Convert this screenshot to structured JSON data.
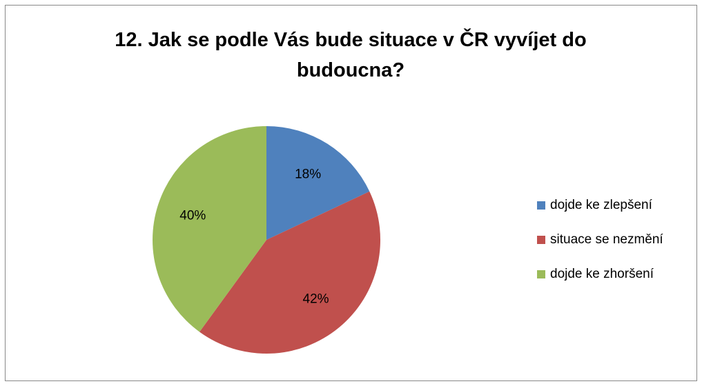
{
  "chart_data": {
    "type": "pie",
    "title": "12. Jak se podle Vás bude situace v ČR vyvíjet do budoucna?",
    "categories": [
      "dojde ke zlepšení",
      "situace se nezmění",
      "dojde ke zhoršení"
    ],
    "values": [
      18,
      42,
      40
    ],
    "value_labels": [
      "18%",
      "42%",
      "40%"
    ],
    "colors": [
      "#4f81bd",
      "#c0504d",
      "#9bbb59"
    ],
    "legend": "right"
  }
}
